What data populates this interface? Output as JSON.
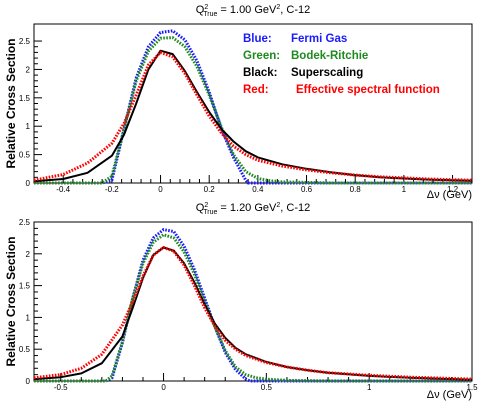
{
  "chart_data": [
    {
      "type": "line",
      "title": {
        "prefix": "Q",
        "sup": "2",
        "sub": "True",
        "rest": " = 1.00 GeV",
        "unit_sup": "2",
        "suffix": ", C-12"
      },
      "ylabel": "Relative Cross Section",
      "xlabel": "Δν (GeV)",
      "xlim": [
        -0.52,
        1.28
      ],
      "ylim": [
        0,
        2.8
      ],
      "xticks": [
        {
          "v": -0.4,
          "label": "-0.4"
        },
        {
          "v": -0.2,
          "label": "-0.2"
        },
        {
          "v": 0,
          "label": "0"
        },
        {
          "v": 0.2,
          "label": "0.2"
        },
        {
          "v": 0.4,
          "label": "0.4"
        },
        {
          "v": 0.6,
          "label": "0.6"
        },
        {
          "v": 0.8,
          "label": "0.8"
        },
        {
          "v": 1.0,
          "label": "1"
        },
        {
          "v": 1.2,
          "label": "1.2"
        }
      ],
      "yticks": [
        {
          "v": 0,
          "label": "0"
        },
        {
          "v": 0.5,
          "label": "0.5"
        },
        {
          "v": 1.0,
          "label": "1"
        },
        {
          "v": 1.5,
          "label": "1.5"
        },
        {
          "v": 2.0,
          "label": "2"
        },
        {
          "v": 2.5,
          "label": "2.5"
        }
      ],
      "legend": [
        {
          "key": "Blue:",
          "label": "Fermi Gas",
          "color": "#1a1aff"
        },
        {
          "key": "Green:",
          "label": "Bodek-Ritchie",
          "color": "#1f8a1f"
        },
        {
          "key": "Black:",
          "label": "Superscaling",
          "color": "#000000"
        },
        {
          "key": "Red:",
          "label": "Effective spectral function",
          "color": "#ff0000"
        }
      ],
      "series": [
        {
          "color": "#1a1aff",
          "style": "dotted",
          "x": [
            -0.52,
            -0.24,
            -0.2,
            -0.15,
            -0.1,
            -0.05,
            0,
            0.05,
            0.1,
            0.15,
            0.2,
            0.25,
            0.3,
            0.35,
            0.36,
            1.28
          ],
          "y": [
            0,
            0,
            0.05,
            0.95,
            1.85,
            2.4,
            2.65,
            2.68,
            2.52,
            2.15,
            1.6,
            0.95,
            0.45,
            0.05,
            0,
            0
          ]
        },
        {
          "color": "#1f8a1f",
          "style": "dotted",
          "x": [
            -0.52,
            -0.24,
            -0.2,
            -0.15,
            -0.1,
            -0.05,
            0,
            0.05,
            0.1,
            0.15,
            0.2,
            0.25,
            0.3,
            0.35,
            0.4,
            0.45,
            0.5,
            0.6,
            0.7,
            0.8,
            1.0,
            1.28
          ],
          "y": [
            0,
            0,
            0.12,
            0.95,
            1.8,
            2.32,
            2.55,
            2.56,
            2.4,
            2.05,
            1.55,
            0.98,
            0.5,
            0.2,
            0.08,
            0.04,
            0.02,
            0.01,
            0,
            0,
            0,
            0
          ]
        },
        {
          "color": "#000000",
          "style": "solid",
          "x": [
            -0.52,
            -0.4,
            -0.3,
            -0.2,
            -0.15,
            -0.1,
            -0.05,
            0,
            0.05,
            0.1,
            0.15,
            0.2,
            0.25,
            0.3,
            0.35,
            0.4,
            0.5,
            0.6,
            0.7,
            0.8,
            0.9,
            1.0,
            1.1,
            1.28
          ],
          "y": [
            0.03,
            0.07,
            0.18,
            0.48,
            0.85,
            1.4,
            2.0,
            2.33,
            2.27,
            1.97,
            1.6,
            1.25,
            0.95,
            0.73,
            0.56,
            0.45,
            0.33,
            0.25,
            0.19,
            0.14,
            0.1,
            0.08,
            0.06,
            0.04
          ]
        },
        {
          "color": "#ff0000",
          "style": "dotted",
          "x": [
            -0.52,
            -0.4,
            -0.3,
            -0.2,
            -0.15,
            -0.1,
            -0.05,
            0,
            0.05,
            0.1,
            0.15,
            0.2,
            0.25,
            0.3,
            0.35,
            0.4,
            0.5,
            0.6,
            0.7,
            0.8,
            0.9,
            1.0,
            1.1,
            1.28
          ],
          "y": [
            0.05,
            0.15,
            0.35,
            0.7,
            1.05,
            1.55,
            2.08,
            2.3,
            2.22,
            1.93,
            1.55,
            1.18,
            0.88,
            0.65,
            0.5,
            0.4,
            0.3,
            0.23,
            0.18,
            0.14,
            0.11,
            0.09,
            0.07,
            0.05
          ]
        }
      ]
    },
    {
      "type": "line",
      "title": {
        "prefix": "Q",
        "sup": "2",
        "sub": "True",
        "rest": " = 1.20 GeV",
        "unit_sup": "2",
        "suffix": ", C-12"
      },
      "ylabel": "Relative Cross Section",
      "xlabel": "Δν (GeV)",
      "xlim": [
        -0.63,
        1.5
      ],
      "ylim": [
        0,
        2.5
      ],
      "xticks": [
        {
          "v": -0.5,
          "label": "-0.5"
        },
        {
          "v": 0,
          "label": "0"
        },
        {
          "v": 0.5,
          "label": "0.5"
        },
        {
          "v": 1.0,
          "label": "1"
        },
        {
          "v": 1.5,
          "label": "1.5"
        }
      ],
      "yticks": [
        {
          "v": 0,
          "label": "0"
        },
        {
          "v": 0.5,
          "label": "0.5"
        },
        {
          "v": 1.0,
          "label": "1"
        },
        {
          "v": 1.5,
          "label": "1.5"
        },
        {
          "v": 2.0,
          "label": "2"
        },
        {
          "v": 2.5,
          "label": "2.5"
        }
      ],
      "series": [
        {
          "color": "#1a1aff",
          "style": "dotted",
          "x": [
            -0.63,
            -0.28,
            -0.25,
            -0.2,
            -0.15,
            -0.1,
            -0.05,
            0,
            0.05,
            0.1,
            0.15,
            0.2,
            0.25,
            0.3,
            0.35,
            0.4,
            0.42,
            1.5
          ],
          "y": [
            0,
            0,
            0.05,
            0.6,
            1.3,
            1.9,
            2.25,
            2.38,
            2.35,
            2.12,
            1.75,
            1.3,
            0.85,
            0.45,
            0.18,
            0.03,
            0,
            0
          ]
        },
        {
          "color": "#1f8a1f",
          "style": "dotted",
          "x": [
            -0.63,
            -0.28,
            -0.25,
            -0.2,
            -0.15,
            -0.1,
            -0.05,
            0,
            0.05,
            0.1,
            0.15,
            0.2,
            0.25,
            0.3,
            0.35,
            0.4,
            0.45,
            0.5,
            0.6,
            0.8,
            1.0,
            1.5
          ],
          "y": [
            0,
            0,
            0.08,
            0.62,
            1.3,
            1.85,
            2.18,
            2.3,
            2.25,
            2.03,
            1.68,
            1.25,
            0.85,
            0.48,
            0.22,
            0.1,
            0.05,
            0.03,
            0.01,
            0,
            0,
            0
          ]
        },
        {
          "color": "#000000",
          "style": "solid",
          "x": [
            -0.63,
            -0.5,
            -0.4,
            -0.3,
            -0.2,
            -0.15,
            -0.1,
            -0.05,
            0,
            0.05,
            0.1,
            0.15,
            0.2,
            0.25,
            0.3,
            0.35,
            0.4,
            0.5,
            0.6,
            0.7,
            0.8,
            1.0,
            1.2,
            1.5
          ],
          "y": [
            0.03,
            0.06,
            0.12,
            0.28,
            0.7,
            1.15,
            1.62,
            1.98,
            2.1,
            2.05,
            1.85,
            1.55,
            1.2,
            0.9,
            0.68,
            0.52,
            0.42,
            0.3,
            0.22,
            0.17,
            0.13,
            0.08,
            0.05,
            0.02
          ]
        },
        {
          "color": "#ff0000",
          "style": "dotted",
          "x": [
            -0.63,
            -0.5,
            -0.4,
            -0.3,
            -0.2,
            -0.15,
            -0.1,
            -0.05,
            0,
            0.05,
            0.1,
            0.15,
            0.2,
            0.25,
            0.3,
            0.35,
            0.4,
            0.5,
            0.6,
            0.7,
            0.8,
            1.0,
            1.2,
            1.5
          ],
          "y": [
            0.05,
            0.1,
            0.2,
            0.42,
            0.88,
            1.25,
            1.65,
            1.98,
            2.1,
            2.04,
            1.82,
            1.5,
            1.15,
            0.86,
            0.64,
            0.5,
            0.4,
            0.29,
            0.22,
            0.17,
            0.13,
            0.09,
            0.06,
            0.03
          ]
        }
      ]
    }
  ]
}
